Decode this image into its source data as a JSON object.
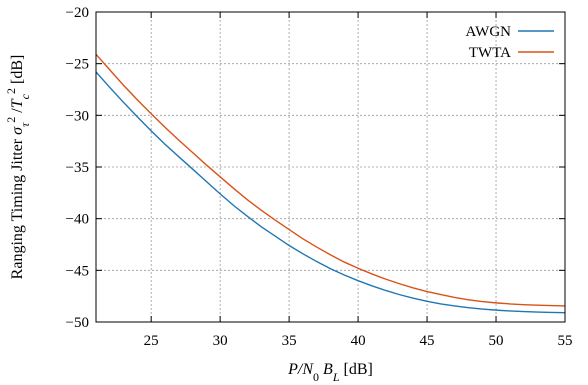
{
  "chart_data": {
    "type": "line",
    "title": "",
    "xlabel": {
      "parts": [
        {
          "t": "P/N",
          "style": "italic"
        },
        {
          "t": "0",
          "style": "sub"
        },
        {
          "t": " B",
          "style": "italic"
        },
        {
          "t": "L",
          "style": "italic-sub"
        },
        {
          "t": " [dB]",
          "style": "normal"
        }
      ]
    },
    "ylabel": {
      "parts": [
        {
          "t": "Ranging Timing Jitter ",
          "style": "normal"
        },
        {
          "t": "σ",
          "style": "italic"
        },
        {
          "t": "τ",
          "style": "italic-sub"
        },
        {
          "t": "2",
          "style": "sup"
        },
        {
          "t": " /",
          "style": "normal"
        },
        {
          "t": "T",
          "style": "italic"
        },
        {
          "t": "c",
          "style": "italic-sub"
        },
        {
          "t": "2",
          "style": "sup"
        },
        {
          "t": " [dB]",
          "style": "normal"
        }
      ]
    },
    "xlim": [
      21,
      55
    ],
    "ylim": [
      -50,
      -20
    ],
    "xticks": [
      25,
      30,
      35,
      40,
      45,
      50,
      55
    ],
    "yticks": [
      -50,
      -45,
      -40,
      -35,
      -30,
      -25,
      -20
    ],
    "grid": true,
    "legend_position": "top-right",
    "x": [
      21,
      22,
      23,
      24,
      25,
      26,
      27,
      28,
      29,
      30,
      31,
      32,
      33,
      34,
      35,
      36,
      37,
      38,
      39,
      40,
      41,
      42,
      43,
      44,
      45,
      46,
      47,
      48,
      49,
      50,
      51,
      52,
      53,
      54,
      55
    ],
    "series": [
      {
        "name": "AWGN",
        "color": "#1f77b4",
        "values": [
          -25.8,
          -27.3,
          -28.75,
          -30.15,
          -31.5,
          -32.8,
          -34.0,
          -35.2,
          -36.4,
          -37.6,
          -38.75,
          -39.8,
          -40.8,
          -41.7,
          -42.6,
          -43.4,
          -44.15,
          -44.85,
          -45.45,
          -46.0,
          -46.5,
          -46.95,
          -47.35,
          -47.7,
          -48.0,
          -48.25,
          -48.45,
          -48.62,
          -48.75,
          -48.85,
          -48.93,
          -48.99,
          -49.04,
          -49.07,
          -49.1
        ]
      },
      {
        "name": "TWTA",
        "color": "#d95319",
        "values": [
          -24.1,
          -25.6,
          -27.1,
          -28.5,
          -29.85,
          -31.15,
          -32.4,
          -33.6,
          -34.8,
          -35.95,
          -37.1,
          -38.2,
          -39.2,
          -40.15,
          -41.05,
          -41.95,
          -42.75,
          -43.5,
          -44.2,
          -44.8,
          -45.35,
          -45.85,
          -46.3,
          -46.7,
          -47.05,
          -47.35,
          -47.62,
          -47.85,
          -48.02,
          -48.15,
          -48.25,
          -48.32,
          -48.37,
          -48.41,
          -48.45
        ]
      }
    ]
  }
}
